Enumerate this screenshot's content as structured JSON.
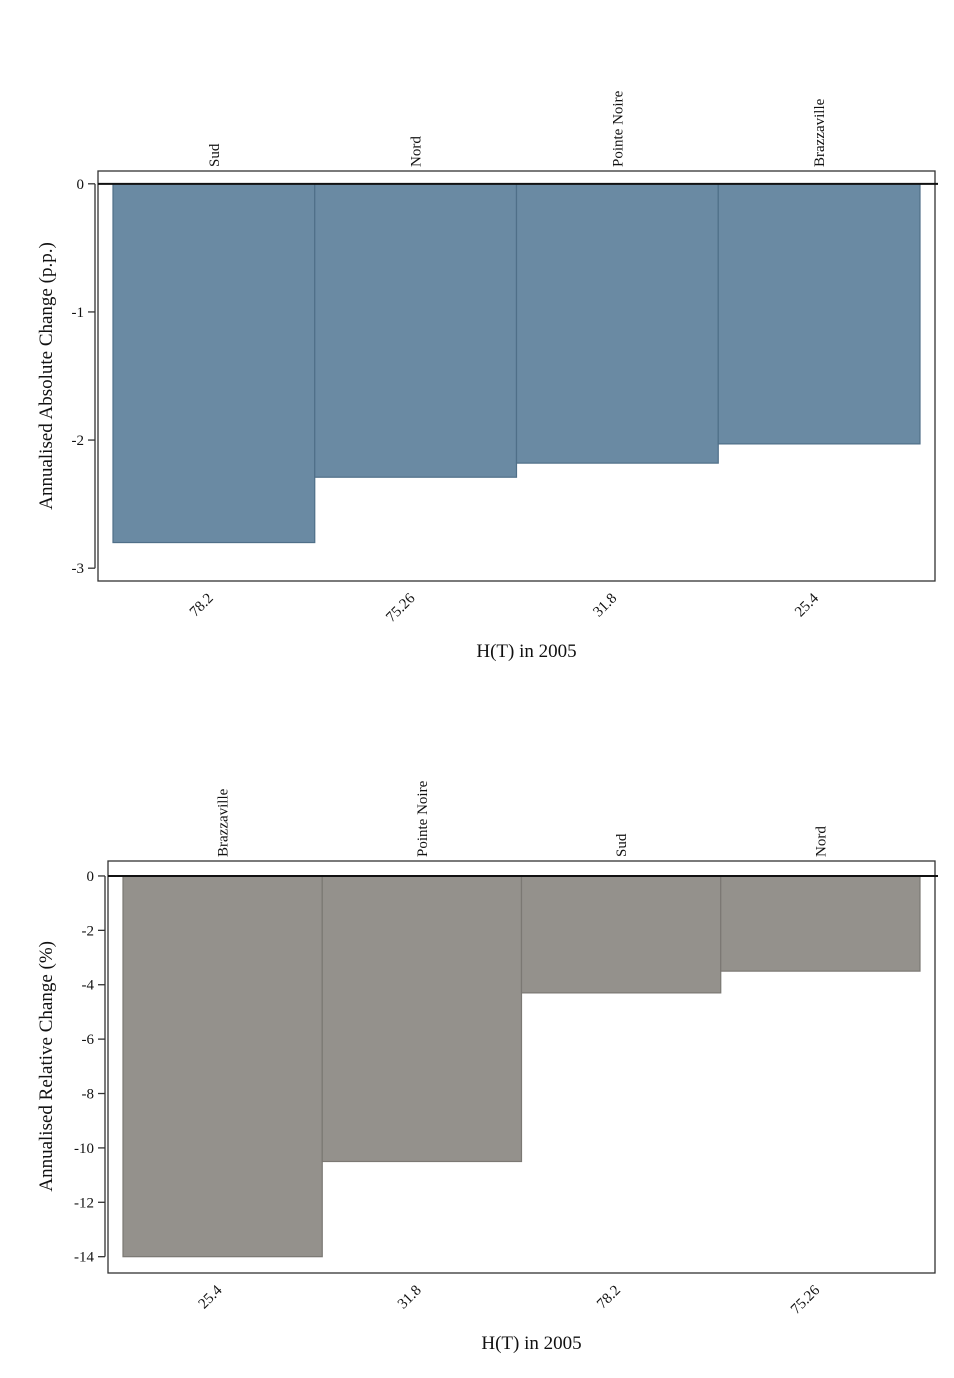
{
  "chart_data": [
    {
      "type": "bar",
      "categories": [
        "78.2",
        "75.26",
        "31.8",
        "25.4"
      ],
      "top_labels": [
        "Sud",
        "Nord",
        "Pointe Noire",
        "Brazzaville"
      ],
      "values": [
        -2.8,
        -2.29,
        -2.18,
        -2.03
      ],
      "xlabel": "H(T) in 2005",
      "ylabel": "Annualised Absolute Change (p.p.)",
      "ylim": [
        -3.1,
        0.1
      ],
      "yticks": [
        0,
        -1,
        -2,
        -3
      ],
      "grid": false,
      "color": "#6a8aa3",
      "edge_color": "#4f6f88"
    },
    {
      "type": "bar",
      "categories": [
        "25.4",
        "31.8",
        "78.2",
        "75.26"
      ],
      "top_labels": [
        "Brazzaville",
        "Pointe Noire",
        "Sud",
        "Nord"
      ],
      "values": [
        -14.0,
        -10.5,
        -4.3,
        -3.5
      ],
      "xlabel": "H(T) in 2005",
      "ylabel": "Annualised Relative Change (%)",
      "ylim": [
        -14.6,
        0.55
      ],
      "yticks": [
        0,
        -2,
        -4,
        -6,
        -8,
        -10,
        -12,
        -14
      ],
      "grid": false,
      "color": "#94918c",
      "edge_color": "#7b7873"
    }
  ]
}
